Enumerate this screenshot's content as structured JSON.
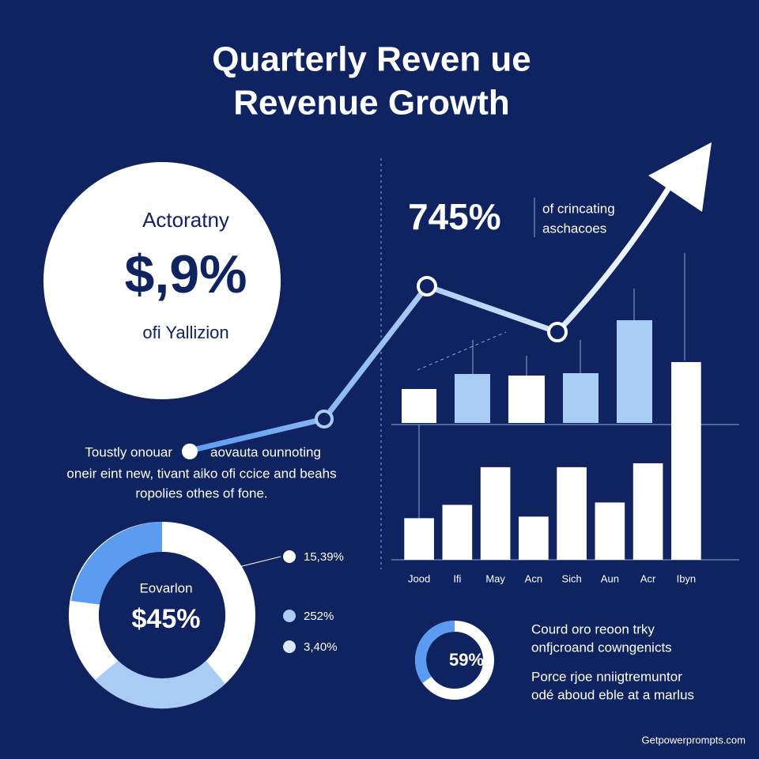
{
  "title": [
    "Quarterly Reven ue",
    "Revenue Growth"
  ],
  "circle": {
    "label": "Actoratny",
    "value": "$,9%",
    "sublabel": "ofi Yallizion"
  },
  "highlight": {
    "value": "745%",
    "text": [
      "of crincating",
      "aschacoes"
    ]
  },
  "description": {
    "left": "Toustly onouar",
    "right": "aovauta ounnoting",
    "lines": [
      "oneir eint new, tivant aiko ofi ccice and beahs",
      "ropolies othes of fone."
    ]
  },
  "donut": {
    "label": "Eovarlon",
    "value": "$45%",
    "legend": [
      "15,39%",
      "252%",
      "3,40%"
    ]
  },
  "chart_data": {
    "type": "bar",
    "categories": [
      "Jood",
      "Ifi",
      "May",
      "Acn",
      "Sich",
      "Aun",
      "Acr",
      "Ibyn"
    ],
    "values": [
      53,
      70,
      118,
      55,
      118,
      73,
      123,
      252
    ],
    "color": "#ffffff",
    "ylim": [
      0,
      260
    ]
  },
  "small_donut": {
    "value": "59%",
    "text": [
      "Courd oro reoon trky",
      "onfjcroand cowngenicts",
      "Porce rjoe nniigtremuntor",
      "odé aboud eble at a marlus"
    ]
  },
  "footer": "Getpowerprompts.com"
}
